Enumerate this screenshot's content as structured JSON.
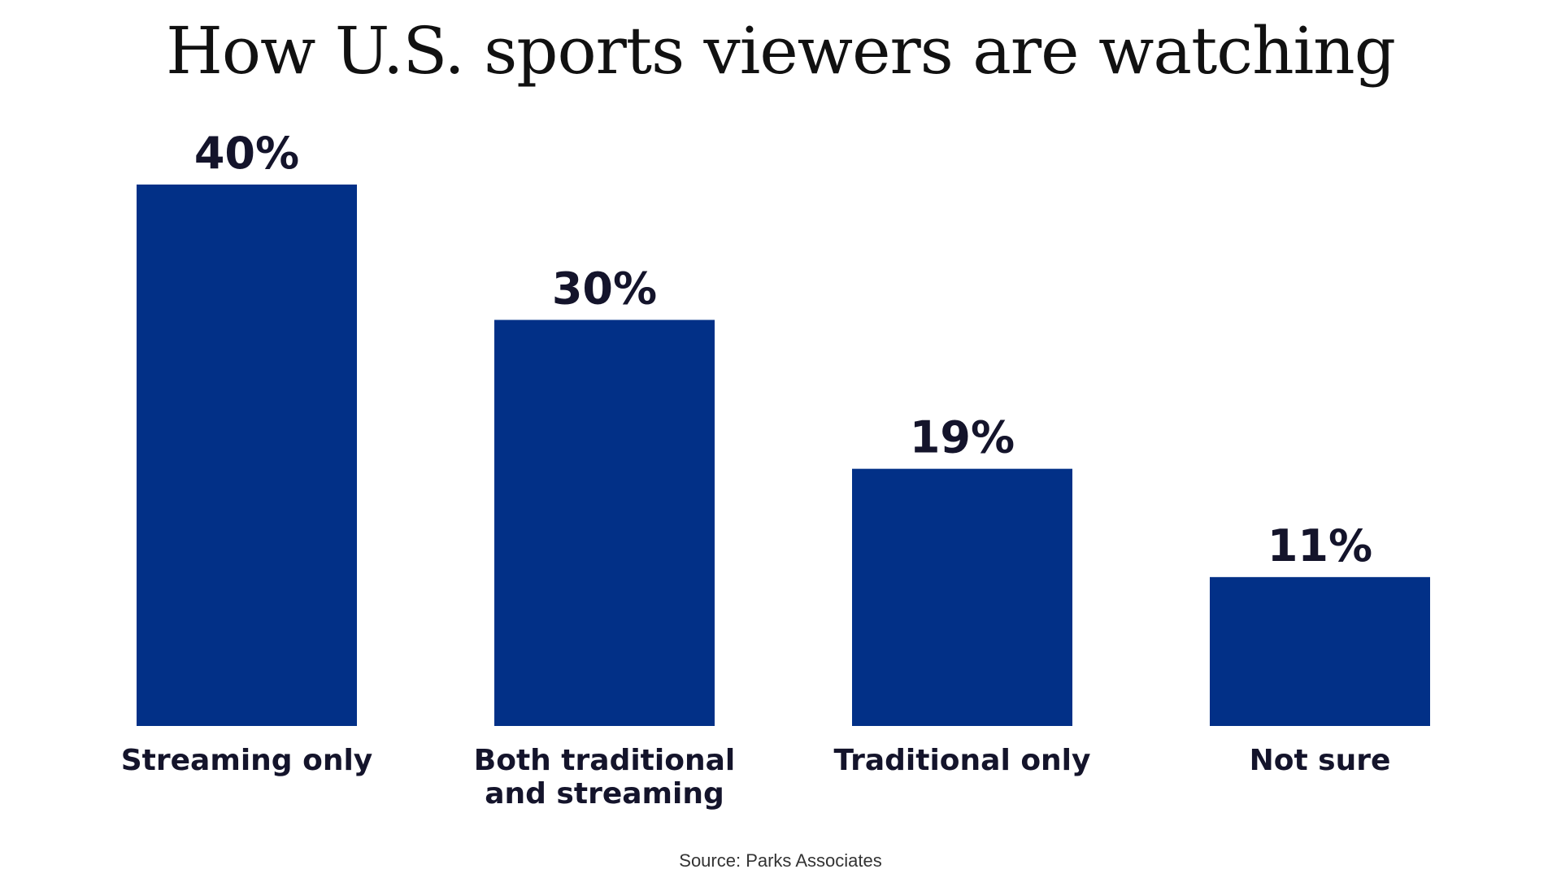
{
  "chart_data": {
    "type": "bar",
    "title": "How U.S. sports viewers are watching",
    "categories": [
      [
        "Streaming only"
      ],
      [
        "Both traditional",
        "and streaming"
      ],
      [
        "Traditional only"
      ],
      [
        "Not sure"
      ]
    ],
    "values": [
      40,
      30,
      19,
      11
    ],
    "value_labels": [
      "40%",
      "30%",
      "19%",
      "11%"
    ],
    "unit": "%",
    "ylim": [
      0,
      40
    ],
    "grid": false,
    "bar_color": "#023087",
    "source": "Source: Parks Associates"
  }
}
